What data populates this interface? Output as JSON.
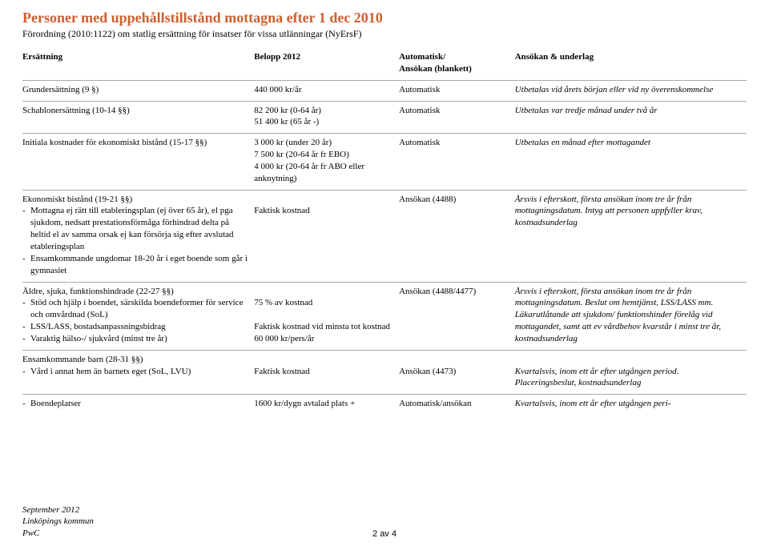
{
  "title": "Personer med uppehållstillstånd mottagna efter 1 dec 2010",
  "subtitle": "Förordning (2010:1122) om statlig ersättning för insatser för vissa utlänningar (NyErsF)",
  "headers": {
    "c1": "Ersättning",
    "c2": "Belopp 2012",
    "c3a": "Automatisk/",
    "c3b": "Ansökan (blankett)",
    "c4": "Ansökan & underlag"
  },
  "rows": {
    "r1": {
      "c1": "Grundersättning (9 §)",
      "c2": "440 000 kr/år",
      "c3": "Automatisk",
      "c4": "Utbetalas vid årets början eller vid ny överenskommelse"
    },
    "r2": {
      "c1": "Schablonersättning (10-14 §§)",
      "c2a": "82 200 kr (0-64 år)",
      "c2b": "51 400 kr (65 år -)",
      "c3": "Automatisk",
      "c4": "Utbetalas var tredje månad under två år"
    },
    "r3": {
      "c1": "Initiala kostnader för ekonomiskt bistånd (15-17 §§)",
      "c2a": "3 000 kr (under 20 år)",
      "c2b": "7 500 kr (20-64 år fr EBO)",
      "c2c": "4 000 kr (20-64 år fr ABO eller anknytning)",
      "c3": "Automatisk",
      "c4": "Utbetalas en månad efter mottagandet"
    },
    "r4": {
      "c1_title": "Ekonomiskt bistånd (19-21 §§)",
      "c1_li1": "Mottagna ej rätt till etableringsplan (ej över 65 år), el pga sjukdom, nedsatt prestationsförmåga förhindrad delta på heltid el av samma orsak ej kan försörja sig efter avslutad etableringsplan",
      "c1_li2": "Ensamkommande ungdomar 18-20 år i eget boende som går i gymnasiet",
      "c2": "Faktisk kostnad",
      "c3": "Ansökan (4488)",
      "c4": "Årsvis i efterskott, första ansökan inom tre år från mottagningsdatum. Intyg att personen uppfyller krav, kostnadsunderlag"
    },
    "r5": {
      "c1_title": "Äldre, sjuka, funktionshindrade (22-27 §§)",
      "c1_li1": "Stöd och hjälp i boendet, särskilda boendeformer för service och omvårdnad (SoL)",
      "c1_li2": "LSS/LASS, bostadsanpassningsbidrag",
      "c1_li3": "Varaktig hälso-/ sjukvård (minst tre år)",
      "c2a": "75 % av kostnad",
      "c2b": "Faktisk kostnad vid minsta tot kostnad 60 000 kr/pers/år",
      "c3": "Ansökan (4488/4477)",
      "c4": "Årsvis i efterskott, första ansökan inom tre år från mottagningsdatum. Beslut om hemtjänst, LSS/LASS mm. Läkarutlåtande att sjukdom/ funktionshinder förelåg vid mottagandet, samt att ev vårdbehov kvarstår i minst tre år, kostnadsunderlag"
    },
    "r6": {
      "c1_title": "Ensamkommande barn (28-31 §§)",
      "c1_li1": "Vård i annat hem än barnets eget (SoL, LVU)",
      "c2": "Faktisk kostnad",
      "c3": "Ansökan (4473)",
      "c4": "Kvartalsvis, inom ett år efter utgången period. Placeringsbeslut, kostnadsunderlag"
    },
    "r7": {
      "c1_li1": "Boendeplatser",
      "c2": "1600 kr/dygn avtalad plats +",
      "c3": "Automatisk/ansökan",
      "c4": "Kvartalsvis, inom ett år efter utgången peri-"
    }
  },
  "footer": {
    "l1": "September 2012",
    "l2": "Linköpings kommun",
    "l3": "PwC"
  },
  "pagenum": "2 av 4"
}
